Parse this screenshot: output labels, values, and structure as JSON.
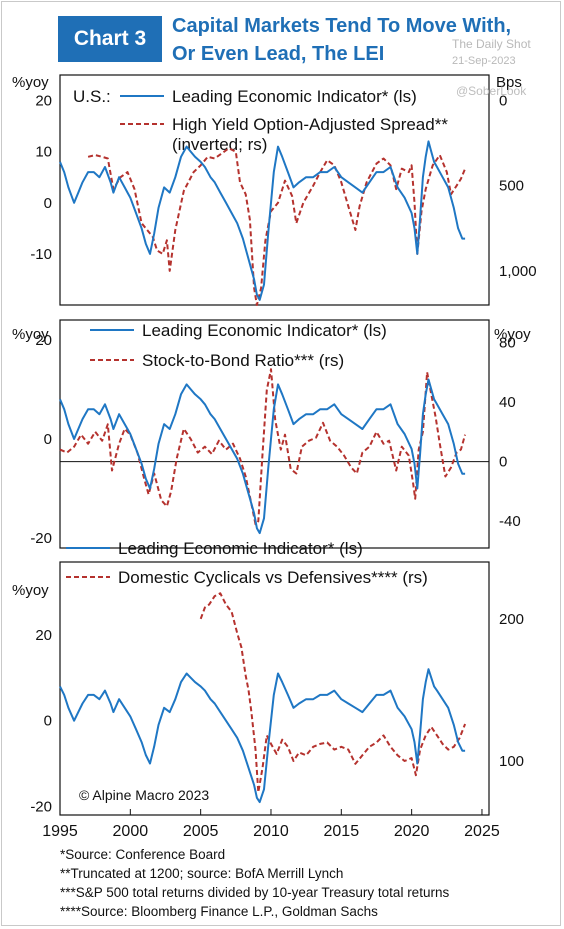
{
  "header": {
    "badge": "Chart 3",
    "title_line1": "Capital Markets Tend To Move With,",
    "title_line2": "Or Even Lead, The LEI"
  },
  "watermark": {
    "source": "The Daily Shot",
    "date": "21-Sep-2023",
    "handle": "@SoberLook"
  },
  "colors": {
    "lei": "#1f77c4",
    "red": "#b5322e",
    "brand": "#1f6fb6"
  },
  "copyright": "© Alpine Macro 2023",
  "footnotes": [
    "*Source: Conference Board",
    "**Truncated at 1200; source: BofA Merrill Lynch",
    "***S&P 500 total returns divided by 10-year Treasury total returns",
    "****Source: Bloomberg Finance L.P., Goldman Sachs"
  ],
  "chart_data": [
    {
      "type": "line",
      "panel_label": "U.S.:",
      "ylabel_left": "%yoy",
      "ylabel_right": "Bps",
      "ylim_left": [
        -20,
        25
      ],
      "yticks_left": [
        "20",
        "10",
        "0",
        "-10"
      ],
      "ylim_right_inverted": [
        1200,
        -150
      ],
      "yticks_right": [
        "0",
        "500",
        "1,000"
      ],
      "xlim": [
        1995,
        2025.5
      ],
      "series": [
        {
          "name": "Leading Economic Indicator* (ls)",
          "axis": "left",
          "style": "solid"
        },
        {
          "name": "High Yield Option-Adjusted Spread** (inverted; rs)",
          "name_line1": "High Yield Option-Adjusted Spread**",
          "name_line2": "(inverted; rs)",
          "axis": "right",
          "style": "dashed",
          "x": [
            1997.0,
            1997.5,
            1998.0,
            1998.4,
            1998.8,
            1999.3,
            1999.8,
            2000.3,
            2000.8,
            2001.2,
            2001.6,
            2001.9,
            2002.3,
            2002.6,
            2002.8,
            2003.2,
            2003.8,
            2004.5,
            2005.0,
            2005.5,
            2006.0,
            2006.5,
            2007.0,
            2007.5,
            2007.8,
            2008.2,
            2008.5,
            2008.8,
            2009.0,
            2009.3,
            2009.6,
            2010.0,
            2010.5,
            2011.0,
            2011.5,
            2011.8,
            2012.3,
            2013.0,
            2013.5,
            2014.0,
            2014.5,
            2015.0,
            2015.5,
            2016.0,
            2016.3,
            2016.8,
            2017.5,
            2018.0,
            2018.5,
            2018.9,
            2019.3,
            2019.8,
            2020.0,
            2020.2,
            2020.4,
            2020.7,
            2021.0,
            2021.5,
            2022.0,
            2022.5,
            2022.8,
            2023.2,
            2023.5,
            2023.8
          ],
          "values": [
            330,
            320,
            330,
            340,
            520,
            450,
            420,
            520,
            720,
            760,
            800,
            880,
            900,
            820,
            1000,
            760,
            530,
            420,
            380,
            330,
            340,
            310,
            280,
            300,
            480,
            550,
            700,
            1100,
            1200,
            1100,
            820,
            650,
            600,
            470,
            560,
            720,
            600,
            500,
            420,
            350,
            380,
            480,
            620,
            760,
            620,
            480,
            370,
            340,
            380,
            520,
            400,
            420,
            380,
            600,
            900,
            650,
            520,
            380,
            320,
            420,
            550,
            500,
            460,
            400
          ]
        }
      ]
    },
    {
      "type": "line",
      "ylabel_left": "%yoy",
      "ylabel_right": "%yoy",
      "ylim_left": [
        -22,
        24
      ],
      "yticks_left": [
        "20",
        "0",
        "-20"
      ],
      "ylim_right": [
        -58,
        95
      ],
      "yticks_right": [
        "80",
        "40",
        "0",
        "-40"
      ],
      "xlim": [
        1995,
        2025.5
      ],
      "series": [
        {
          "name": "Leading Economic Indicator* (ls)",
          "axis": "left",
          "style": "solid"
        },
        {
          "name": "Stock-to-Bond Ratio*** (rs)",
          "axis": "right",
          "style": "dashed",
          "x": [
            1995.0,
            1995.5,
            1996.0,
            1996.5,
            1997.0,
            1997.5,
            1998.0,
            1998.4,
            1998.7,
            1999.2,
            1999.6,
            2000.0,
            2000.5,
            2001.0,
            2001.3,
            2001.7,
            2002.2,
            2002.6,
            2002.9,
            2003.3,
            2003.8,
            2004.3,
            2004.8,
            2005.3,
            2005.8,
            2006.3,
            2006.8,
            2007.3,
            2007.8,
            2008.2,
            2008.6,
            2008.9,
            2009.1,
            2009.4,
            2009.7,
            2010.0,
            2010.3,
            2010.7,
            2011.0,
            2011.4,
            2011.8,
            2012.2,
            2012.7,
            2013.2,
            2013.7,
            2014.2,
            2014.7,
            2015.2,
            2015.7,
            2016.1,
            2016.5,
            2017.0,
            2017.5,
            2018.0,
            2018.4,
            2018.9,
            2019.3,
            2019.8,
            2020.1,
            2020.25,
            2020.5,
            2020.8,
            2021.1,
            2021.4,
            2021.7,
            2022.0,
            2022.4,
            2022.8,
            2023.2,
            2023.5,
            2023.8
          ],
          "values": [
            8,
            6,
            10,
            18,
            12,
            20,
            14,
            25,
            -6,
            12,
            22,
            18,
            6,
            -12,
            -22,
            -8,
            -26,
            -30,
            -20,
            2,
            22,
            15,
            6,
            10,
            5,
            14,
            8,
            12,
            2,
            -10,
            -28,
            -42,
            -40,
            5,
            48,
            62,
            28,
            8,
            18,
            -5,
            -8,
            10,
            14,
            16,
            26,
            14,
            10,
            4,
            -4,
            -8,
            6,
            10,
            20,
            12,
            14,
            -6,
            10,
            4,
            -14,
            -25,
            8,
            20,
            60,
            45,
            30,
            12,
            -10,
            -4,
            6,
            8,
            18
          ]
        }
      ]
    },
    {
      "type": "line",
      "ylabel_left": "%yoy",
      "ylim_left": [
        -22,
        37
      ],
      "yticks_left": [
        "20",
        "0",
        "-20"
      ],
      "ylim_right": [
        62,
        240
      ],
      "yticks_right": [
        "200",
        "100"
      ],
      "xlim": [
        1995,
        2025.5
      ],
      "xticks": [
        "1995",
        "2000",
        "2005",
        "2010",
        "2015",
        "2020",
        "2025"
      ],
      "series": [
        {
          "name": "Leading Economic Indicator* (ls)",
          "axis": "left",
          "style": "solid"
        },
        {
          "name": "Domestic Cyclicals vs Defensives**** (rs)",
          "axis": "right",
          "style": "dashed",
          "x": [
            2005.0,
            2005.3,
            2005.6,
            2006.0,
            2006.4,
            2006.8,
            2007.2,
            2007.6,
            2007.9,
            2008.2,
            2008.4,
            2008.6,
            2008.9,
            2009.1,
            2009.4,
            2009.7,
            2010.0,
            2010.4,
            2010.8,
            2011.2,
            2011.6,
            2012.0,
            2012.5,
            2013.0,
            2013.5,
            2014.0,
            2014.5,
            2015.0,
            2015.5,
            2016.0,
            2016.5,
            2017.0,
            2017.5,
            2018.0,
            2018.5,
            2019.0,
            2019.5,
            2020.0,
            2020.3,
            2020.6,
            2021.0,
            2021.4,
            2021.8,
            2022.2,
            2022.6,
            2023.0,
            2023.4,
            2023.8
          ],
          "values": [
            200,
            208,
            210,
            216,
            218,
            210,
            205,
            190,
            180,
            160,
            150,
            135,
            108,
            78,
            95,
            118,
            112,
            105,
            115,
            110,
            100,
            106,
            104,
            110,
            112,
            113,
            108,
            110,
            108,
            98,
            104,
            110,
            113,
            118,
            110,
            104,
            100,
            102,
            90,
            108,
            118,
            124,
            118,
            112,
            108,
            110,
            116,
            126
          ]
        }
      ]
    }
  ],
  "lei_data": {
    "name": "Leading Economic Indicator*",
    "x": [
      1995.0,
      1995.3,
      1995.6,
      1996.0,
      1996.3,
      1996.6,
      1997.0,
      1997.4,
      1997.8,
      1998.2,
      1998.6,
      1998.8,
      1999.2,
      1999.6,
      2000.0,
      2000.4,
      2000.8,
      2001.1,
      2001.4,
      2001.7,
      2002.0,
      2002.4,
      2002.8,
      2003.2,
      2003.6,
      2004.0,
      2004.3,
      2004.6,
      2005.0,
      2005.3,
      2005.7,
      2006.0,
      2006.4,
      2006.8,
      2007.2,
      2007.6,
      2008.0,
      2008.4,
      2008.8,
      2009.0,
      2009.2,
      2009.5,
      2009.8,
      2010.2,
      2010.5,
      2010.8,
      2011.2,
      2011.6,
      2012.0,
      2012.5,
      2013.0,
      2013.5,
      2014.0,
      2014.5,
      2015.0,
      2015.5,
      2016.0,
      2016.5,
      2017.0,
      2017.5,
      2018.0,
      2018.5,
      2019.0,
      2019.5,
      2020.0,
      2020.2,
      2020.4,
      2020.6,
      2020.8,
      2021.0,
      2021.2,
      2021.4,
      2021.6,
      2021.8,
      2022.2,
      2022.6,
      2023.0,
      2023.3,
      2023.6,
      2023.8
    ],
    "values": [
      8,
      6,
      3,
      0,
      2,
      4,
      6,
      6,
      5,
      7,
      4,
      2,
      5,
      3,
      1,
      -2,
      -5,
      -8,
      -10,
      -6,
      -1,
      3,
      2,
      5,
      9,
      11,
      10,
      9,
      8,
      7,
      5,
      4,
      2,
      0,
      -2,
      -4,
      -7,
      -11,
      -15,
      -18,
      -19,
      -16,
      -6,
      6,
      11,
      9,
      6,
      3,
      4,
      5,
      5,
      6,
      6,
      7,
      5,
      4,
      3,
      2,
      4,
      6,
      6,
      7,
      3,
      1,
      -2,
      -5,
      -10,
      -3,
      5,
      9,
      12,
      10,
      8,
      7,
      5,
      3,
      -1,
      -5,
      -7,
      -7
    ]
  }
}
